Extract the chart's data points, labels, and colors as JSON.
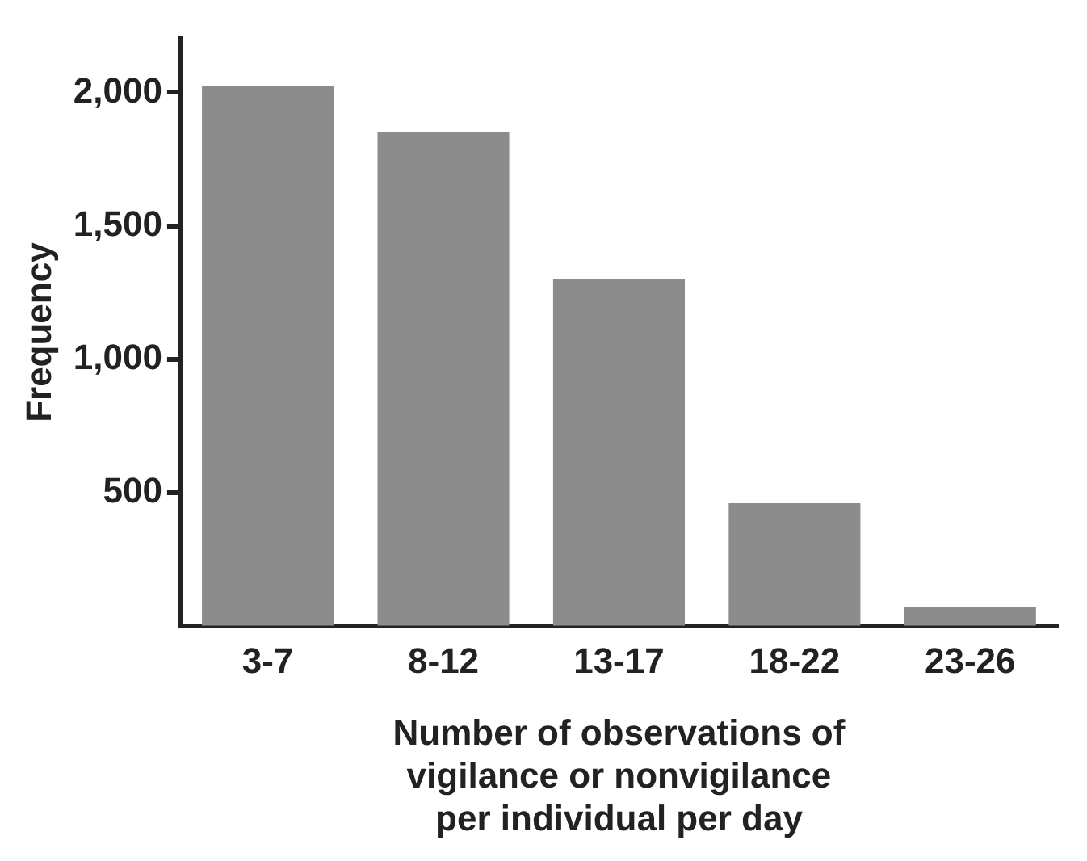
{
  "chart_data": {
    "type": "bar",
    "categories": [
      "3-7",
      "8-12",
      "13-17",
      "18-22",
      "23-26"
    ],
    "values": [
      2025,
      1850,
      1300,
      460,
      70
    ],
    "color": "#8c8c8c",
    "ylabel": "Frequency",
    "xlabel": "Number of observations of\nvigilance or nonvigilance\nper individual per day",
    "ylim": [
      0,
      2200
    ],
    "yticks": [
      {
        "value": 500,
        "label": "500"
      },
      {
        "value": 1000,
        "label": "1,000"
      },
      {
        "value": 1500,
        "label": "1,500"
      },
      {
        "value": 2000,
        "label": "2,000"
      }
    ],
    "grid": false,
    "legend": false
  }
}
